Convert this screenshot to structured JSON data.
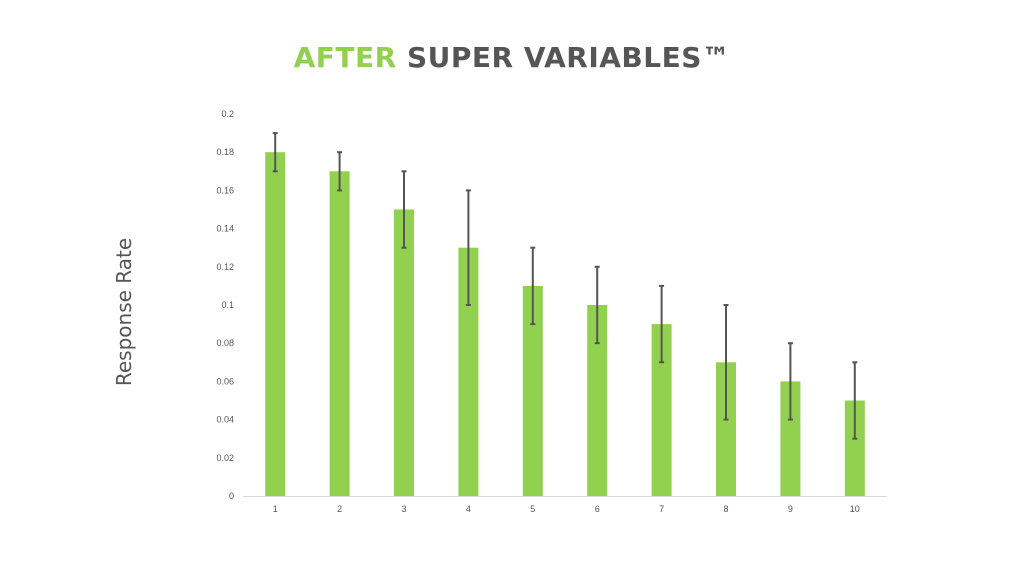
{
  "title": {
    "accent": "AFTER",
    "rest": "SUPER VARIABLES™"
  },
  "colors": {
    "accent": "#92d050",
    "bar": "#92d050",
    "error_bar": "#555555",
    "axis": "#d9d9d9",
    "text": "#555555"
  },
  "chart_data": {
    "type": "bar",
    "title": "AFTER SUPER VARIABLES™",
    "xlabel": "",
    "ylabel": "Response Rate",
    "categories": [
      "1",
      "2",
      "3",
      "4",
      "5",
      "6",
      "7",
      "8",
      "9",
      "10"
    ],
    "values": [
      0.18,
      0.17,
      0.15,
      0.13,
      0.11,
      0.1,
      0.09,
      0.07,
      0.06,
      0.05
    ],
    "error_low": [
      0.17,
      0.16,
      0.13,
      0.1,
      0.09,
      0.08,
      0.07,
      0.04,
      0.04,
      0.03
    ],
    "error_high": [
      0.19,
      0.18,
      0.17,
      0.16,
      0.13,
      0.12,
      0.11,
      0.1,
      0.08,
      0.07
    ],
    "ylim": [
      0,
      0.2
    ],
    "yticks": [
      "0",
      "0.02",
      "0.04",
      "0.06",
      "0.08",
      "0.1",
      "0.12",
      "0.14",
      "0.16",
      "0.18",
      "0.2"
    ],
    "grid": false,
    "legend": "none"
  }
}
